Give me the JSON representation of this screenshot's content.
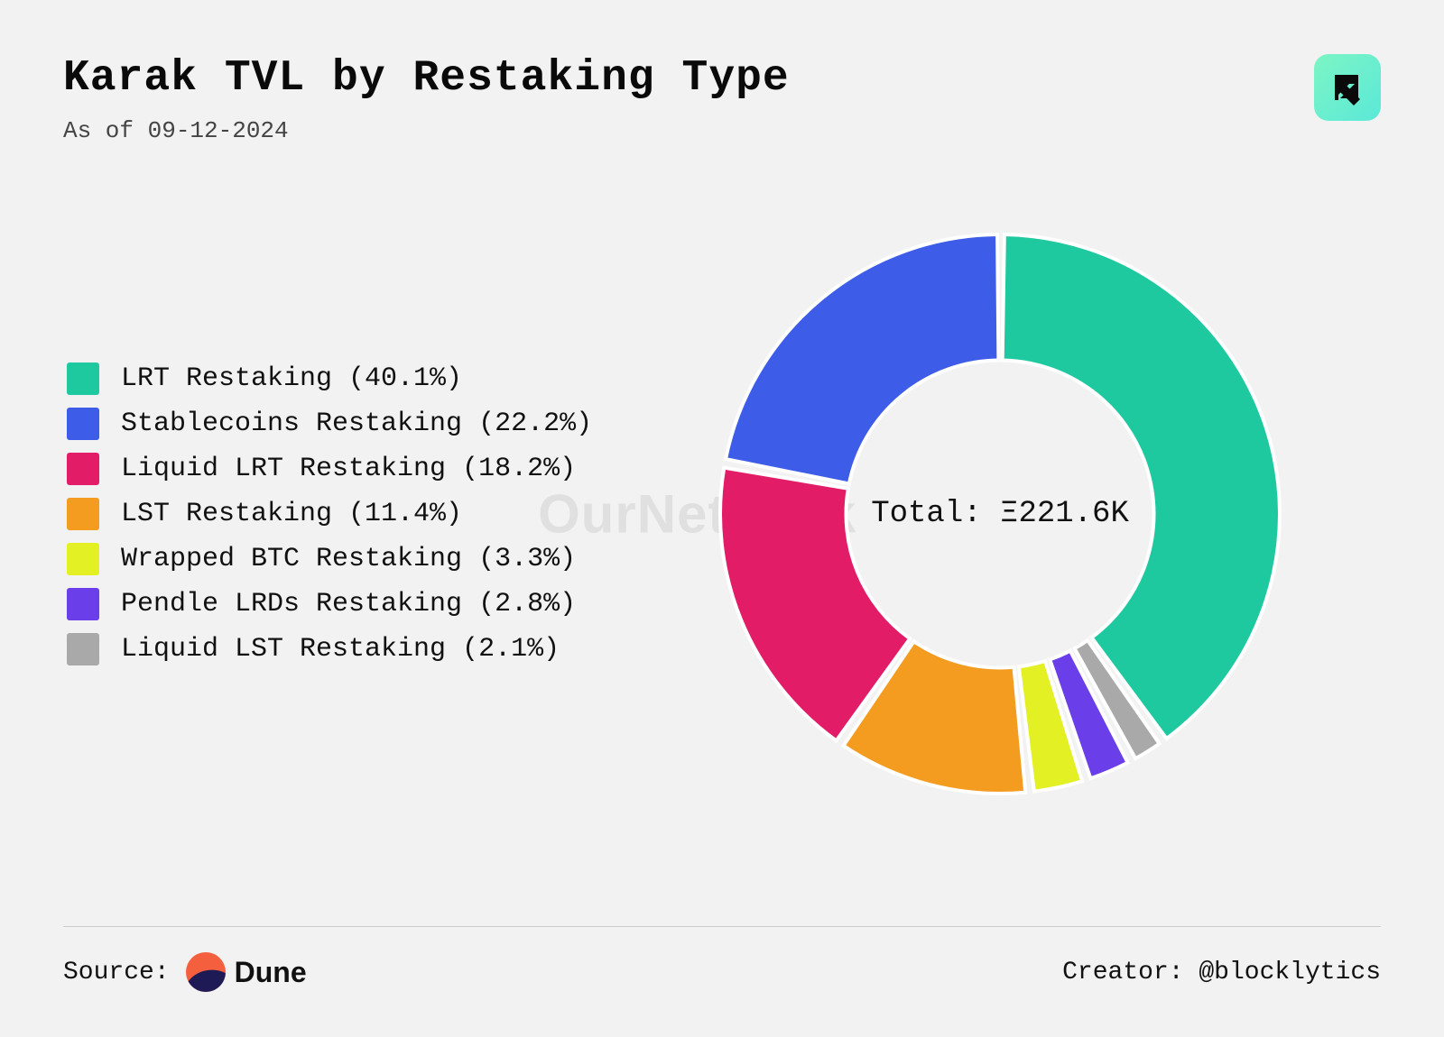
{
  "header": {
    "title": "Karak TVL by Restaking Type",
    "subtitle": "As of 09-12-2024"
  },
  "watermark": "OurNetwork",
  "chart": {
    "type": "donut",
    "center_label": "Total: Ξ221.6K",
    "inner_radius_ratio": 0.55,
    "gap_deg": 1.8,
    "stroke_color": "#ffffff",
    "stroke_width": 4,
    "background_color": "#f2f2f2",
    "segments": [
      {
        "label": "LRT Restaking",
        "pct": 40.1,
        "color": "#1FC9A0"
      },
      {
        "label": "Stablecoins Restaking",
        "pct": 22.2,
        "color": "#3D5CE8"
      },
      {
        "label": "Liquid LRT Restaking",
        "pct": 18.2,
        "color": "#E31C68"
      },
      {
        "label": "LST Restaking",
        "pct": 11.4,
        "color": "#F39C1F"
      },
      {
        "label": "Wrapped BTC Restaking",
        "pct": 3.3,
        "color": "#E3F024"
      },
      {
        "label": "Pendle LRDs Restaking",
        "pct": 2.8,
        "color": "#6A3EE8"
      },
      {
        "label": "Liquid LST Restaking",
        "pct": 2.1,
        "color": "#A9A9A9"
      }
    ],
    "legend_fontsize": 30,
    "title_fontsize": 48,
    "subtitle_fontsize": 26,
    "center_label_fontsize": 34
  },
  "footer": {
    "source_label": "Source:",
    "source_name": "Dune",
    "creator_label": "Creator:",
    "creator_handle": "@blocklytics"
  }
}
